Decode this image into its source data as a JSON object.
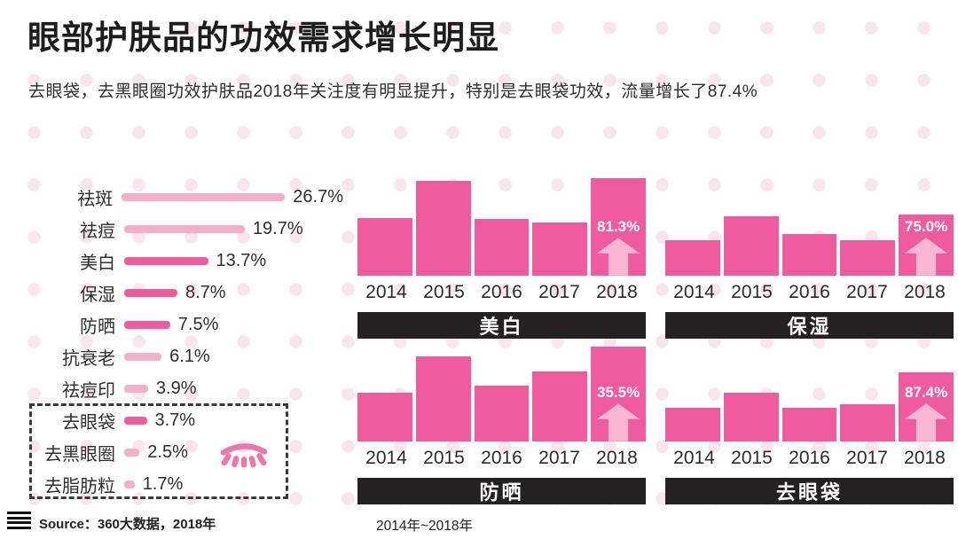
{
  "title": "眼部护肤品的功效需求增长明显",
  "subtitle": "去眼袋，去黑眼圈功效护肤品2018年关注度有明显提升，特别是去眼袋功效，流量增长了87.4%",
  "footer": {
    "source": "Source：360大数据，2018年",
    "range_note": "2014年~2018年",
    "menu_icon": "hamburger-icon"
  },
  "colors": {
    "hot_pink": "#EF5B9E",
    "light_pink": "#F5AFCC",
    "arrow_pink": "#F9B7D4",
    "lash_pink": "#EF76AB",
    "panel_black": "#252123",
    "dashed_border": "#3A3A3A",
    "dot_pink": "#F9E6EC",
    "text_dark": "#2D2D2D"
  },
  "chart_data": [
    {
      "id": "function-demand-share",
      "type": "bar",
      "orientation": "horizontal",
      "unit": "%",
      "categories": [
        "祛斑",
        "祛痘",
        "美白",
        "保湿",
        "防晒",
        "抗衰老",
        "祛痘印",
        "去眼袋",
        "去黑眼圈",
        "去脂肪粒"
      ],
      "values": [
        26.7,
        19.7,
        13.7,
        8.7,
        7.5,
        6.1,
        3.9,
        3.7,
        2.5,
        1.7
      ],
      "labels": [
        "26.7%",
        "19.7%",
        "13.7%",
        "8.7%",
        "7.5%",
        "6.1%",
        "3.9%",
        "3.7%",
        "2.5%",
        "1.7%"
      ],
      "highlighted": [
        false,
        false,
        true,
        true,
        true,
        false,
        false,
        true,
        false,
        false
      ],
      "boxed_categories": [
        "去眼袋",
        "去黑眼圈",
        "去脂肪粒"
      ],
      "note": "categories in hot pink correspond to the four yearly trend charts"
    },
    {
      "id": "whitening-trend",
      "slug": "whitening",
      "type": "bar",
      "title": "美白",
      "categories": [
        "2014",
        "2015",
        "2016",
        "2017",
        "2018"
      ],
      "relative_heights": [
        59,
        97,
        58,
        55,
        100
      ],
      "growth_2018": "81.3%",
      "note": "no y-axis; heights are relative attention volume"
    },
    {
      "id": "moisturizing-trend",
      "slug": "moisturizing",
      "type": "bar",
      "title": "保湿",
      "categories": [
        "2014",
        "2015",
        "2016",
        "2017",
        "2018"
      ],
      "relative_heights": [
        36,
        61,
        43,
        36,
        63
      ],
      "growth_2018": "75.0%",
      "note": "no y-axis; heights are relative attention volume"
    },
    {
      "id": "sunscreen-trend",
      "slug": "sunscreen",
      "type": "bar",
      "title": "防晒",
      "categories": [
        "2014",
        "2015",
        "2016",
        "2017",
        "2018"
      ],
      "relative_heights": [
        50,
        87,
        57,
        72,
        97
      ],
      "growth_2018": "35.5%",
      "note": "no y-axis; heights are relative attention volume"
    },
    {
      "id": "eyebag-removal-trend",
      "slug": "eyebag-removal",
      "type": "bar",
      "title": "去眼袋",
      "categories": [
        "2014",
        "2015",
        "2016",
        "2017",
        "2018"
      ],
      "relative_heights": [
        35,
        50,
        35,
        38,
        71
      ],
      "growth_2018": "87.4%",
      "note": "no y-axis; heights are relative attention volume"
    }
  ]
}
